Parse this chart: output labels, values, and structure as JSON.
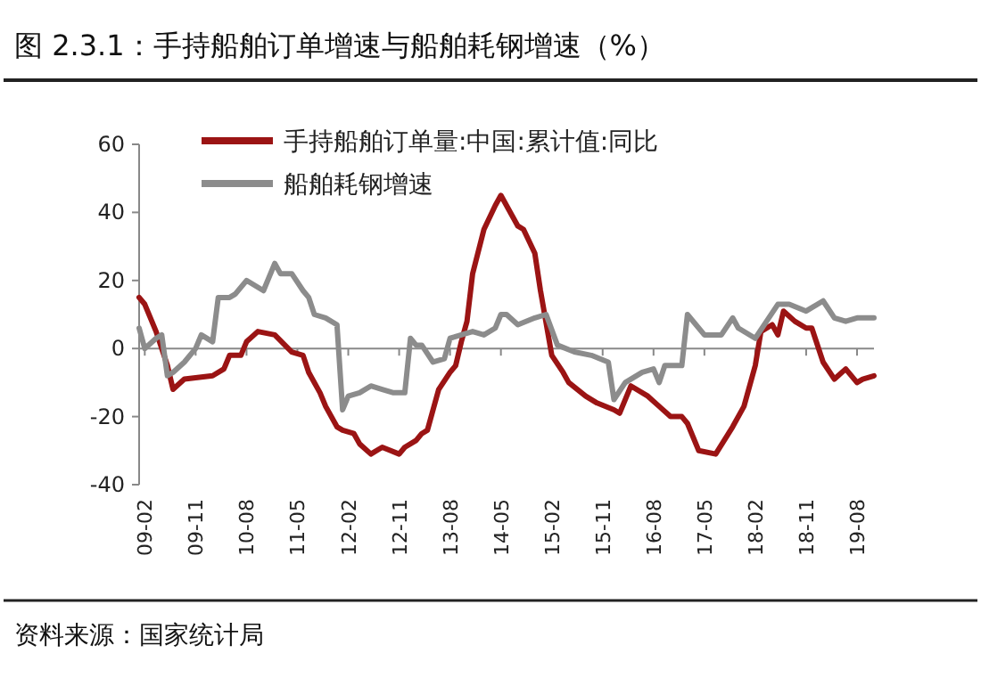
{
  "chart_data": {
    "type": "line",
    "title": "图 2.3.1：手持船舶订单增速与船舶耗钢增速（%）",
    "annotations": [
      "资料来源：国家统计局"
    ],
    "legend": "top left",
    "ylim": [
      -40,
      60
    ],
    "yticks": [
      -40,
      -20,
      0,
      20,
      40,
      60
    ],
    "xlim": [
      "2009-01",
      "2019-11"
    ],
    "xticks": [
      {
        "value": "2009-02",
        "label": "09-02"
      },
      {
        "value": "2009-11",
        "label": "09-11"
      },
      {
        "value": "2010-08",
        "label": "10-08"
      },
      {
        "value": "2011-05",
        "label": "11-05"
      },
      {
        "value": "2012-02",
        "label": "12-02"
      },
      {
        "value": "2012-11",
        "label": "12-11"
      },
      {
        "value": "2013-08",
        "label": "13-08"
      },
      {
        "value": "2014-05",
        "label": "14-05"
      },
      {
        "value": "2015-02",
        "label": "15-02"
      },
      {
        "value": "2015-11",
        "label": "15-11"
      },
      {
        "value": "2016-08",
        "label": "16-08"
      },
      {
        "value": "2017-05",
        "label": "17-05"
      },
      {
        "value": "2018-02",
        "label": "18-02"
      },
      {
        "value": "2018-11",
        "label": "18-11"
      },
      {
        "value": "2019-08",
        "label": "19-08"
      }
    ],
    "series": [
      {
        "name": "手持船舶订单量:中国:累计值:同比",
        "color": "#9b1414",
        "x": [
          "2009-01",
          "2009-02",
          "2009-04",
          "2009-06",
          "2009-07",
          "2009-09",
          "2010-02",
          "2010-04",
          "2010-05",
          "2010-07",
          "2010-08",
          "2010-10",
          "2011-01",
          "2011-04",
          "2011-06",
          "2011-07",
          "2011-09",
          "2011-10",
          "2011-12",
          "2012-01",
          "2012-03",
          "2012-04",
          "2012-06",
          "2012-08",
          "2012-11",
          "2012-12",
          "2013-02",
          "2013-03",
          "2013-04",
          "2013-06",
          "2013-08",
          "2013-09",
          "2013-10",
          "2013-11",
          "2013-12",
          "2014-02",
          "2014-04",
          "2014-05",
          "2014-07",
          "2014-08",
          "2014-09",
          "2014-11",
          "2014-12",
          "2015-02",
          "2015-04",
          "2015-05",
          "2015-08",
          "2015-10",
          "2016-01",
          "2016-02",
          "2016-04",
          "2016-07",
          "2016-09",
          "2016-11",
          "2017-01",
          "2017-02",
          "2017-04",
          "2017-07",
          "2017-10",
          "2017-12",
          "2018-02",
          "2018-03",
          "2018-05",
          "2018-06",
          "2018-07",
          "2018-09",
          "2018-11",
          "2018-12",
          "2019-02",
          "2019-04",
          "2019-06",
          "2019-08",
          "2019-09",
          "2019-11"
        ],
        "values": [
          15,
          13,
          5,
          -5,
          -12,
          -9,
          -8,
          -6,
          -2,
          -2,
          2,
          5,
          4,
          -1,
          -2,
          -7,
          -13,
          -17,
          -23,
          -24,
          -25,
          -28,
          -31,
          -29,
          -31,
          -29,
          -27,
          -25,
          -24,
          -12,
          -7,
          -5,
          2,
          8,
          22,
          35,
          42,
          45,
          39,
          36,
          35,
          28,
          17,
          -2,
          -7,
          -10,
          -14,
          -16,
          -18,
          -19,
          -11,
          -14,
          -17,
          -20,
          -20,
          -22,
          -30,
          -31,
          -23,
          -17,
          -5,
          5,
          7,
          4,
          11,
          8,
          6,
          6,
          -4,
          -9,
          -6,
          -10,
          -9,
          -8
        ]
      },
      {
        "name": "船舶耗钢增速",
        "color": "#8c8c8c",
        "x": [
          "2009-01",
          "2009-02",
          "2009-04",
          "2009-05",
          "2009-06",
          "2009-07",
          "2009-09",
          "2009-11",
          "2009-12",
          "2010-02",
          "2010-03",
          "2010-05",
          "2010-06",
          "2010-08",
          "2010-11",
          "2011-01",
          "2011-02",
          "2011-04",
          "2011-06",
          "2011-07",
          "2011-08",
          "2011-10",
          "2011-12",
          "2012-01",
          "2012-02",
          "2012-04",
          "2012-06",
          "2012-08",
          "2012-10",
          "2012-12",
          "2013-01",
          "2013-02",
          "2013-03",
          "2013-05",
          "2013-07",
          "2013-08",
          "2013-10",
          "2013-12",
          "2014-02",
          "2014-04",
          "2014-05",
          "2014-06",
          "2014-08",
          "2014-11",
          "2015-01",
          "2015-03",
          "2015-06",
          "2015-09",
          "2015-12",
          "2016-01",
          "2016-03",
          "2016-06",
          "2016-08",
          "2016-09",
          "2016-10",
          "2017-01",
          "2017-02",
          "2017-05",
          "2017-08",
          "2017-10",
          "2017-11",
          "2018-02",
          "2018-04",
          "2018-06",
          "2018-08",
          "2018-11",
          "2019-02",
          "2019-04",
          "2019-06",
          "2019-08",
          "2019-11"
        ],
        "values": [
          6,
          0,
          3,
          4,
          -8,
          -7,
          -4,
          0,
          4,
          2,
          15,
          15,
          16,
          20,
          17,
          25,
          22,
          22,
          17,
          15,
          10,
          9,
          7,
          -18,
          -14,
          -13,
          -11,
          -12,
          -13,
          -13,
          3,
          1,
          1,
          -4,
          -3,
          3,
          4,
          5,
          4,
          6,
          10,
          10,
          7,
          9,
          10,
          1,
          -1,
          -2,
          -4,
          -15,
          -10,
          -7,
          -6,
          -10,
          -5,
          -5,
          10,
          4,
          4,
          9,
          6,
          3,
          8,
          13,
          13,
          11,
          14,
          9,
          8,
          9,
          9
        ]
      }
    ]
  }
}
